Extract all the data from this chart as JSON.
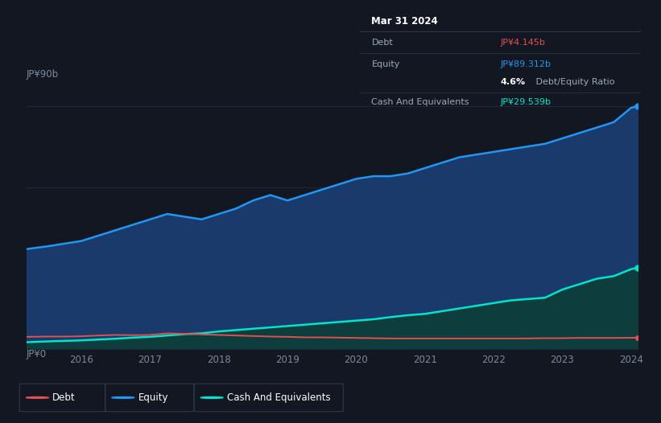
{
  "background_color": "#131722",
  "plot_bg_color": "#131722",
  "ylabel_top": "JP¥90b",
  "ylabel_bottom": "JP¥0",
  "tooltip": {
    "date": "Mar 31 2024",
    "debt_label": "Debt",
    "debt_value": "JP¥4.145b",
    "debt_color": "#e05050",
    "equity_label": "Equity",
    "equity_value": "JP¥89.312b",
    "equity_color": "#2196f3",
    "ratio_value": "4.6%",
    "ratio_text": " Debt/Equity Ratio",
    "cash_label": "Cash And Equivalents",
    "cash_value": "JP¥29.539b",
    "cash_color": "#00e5cc"
  },
  "legend": [
    {
      "label": "Debt",
      "color": "#e05050"
    },
    {
      "label": "Equity",
      "color": "#2196f3"
    },
    {
      "label": "Cash And Equivalents",
      "color": "#00e5cc"
    }
  ],
  "years": [
    2015.2,
    2015.5,
    2015.75,
    2016.0,
    2016.25,
    2016.5,
    2016.75,
    2017.0,
    2017.25,
    2017.5,
    2017.75,
    2018.0,
    2018.25,
    2018.5,
    2018.75,
    2019.0,
    2019.25,
    2019.5,
    2019.75,
    2020.0,
    2020.25,
    2020.5,
    2020.75,
    2021.0,
    2021.25,
    2021.5,
    2021.75,
    2022.0,
    2022.25,
    2022.5,
    2022.75,
    2023.0,
    2023.25,
    2023.5,
    2023.75,
    2024.0,
    2024.1
  ],
  "equity": [
    37,
    38,
    39,
    40,
    42,
    44,
    46,
    48,
    50,
    49,
    48,
    50,
    52,
    55,
    57,
    55,
    57,
    59,
    61,
    63,
    64,
    64,
    65,
    67,
    69,
    71,
    72,
    73,
    74,
    75,
    76,
    78,
    80,
    82,
    84,
    89.3,
    90
  ],
  "debt": [
    4.5,
    4.6,
    4.6,
    4.7,
    5.0,
    5.2,
    5.1,
    5.2,
    5.8,
    5.6,
    5.4,
    5.2,
    5.0,
    4.8,
    4.6,
    4.5,
    4.3,
    4.3,
    4.2,
    4.1,
    4.0,
    3.9,
    3.9,
    3.9,
    3.9,
    3.9,
    3.9,
    3.9,
    3.9,
    3.9,
    4.0,
    4.0,
    4.1,
    4.1,
    4.1,
    4.145,
    4.2
  ],
  "cash": [
    2.5,
    2.8,
    3.0,
    3.2,
    3.5,
    3.8,
    4.2,
    4.5,
    5.0,
    5.5,
    5.8,
    6.5,
    7.0,
    7.5,
    8.0,
    8.5,
    9.0,
    9.5,
    10.0,
    10.5,
    11.0,
    11.8,
    12.5,
    13.0,
    14.0,
    15.0,
    16.0,
    17.0,
    18.0,
    18.5,
    19.0,
    22.0,
    24.0,
    26.0,
    27.0,
    29.539,
    30.2
  ],
  "equity_fill_color": "#1a3a6b",
  "cash_fill_color": "#0d3d3d",
  "equity_line_color": "#2196f3",
  "cash_line_color": "#00e5cc",
  "debt_line_color": "#e05050",
  "grid_color": "#1e2a3a",
  "tick_color": "#7a8a9a",
  "ylim": [
    0,
    94
  ]
}
